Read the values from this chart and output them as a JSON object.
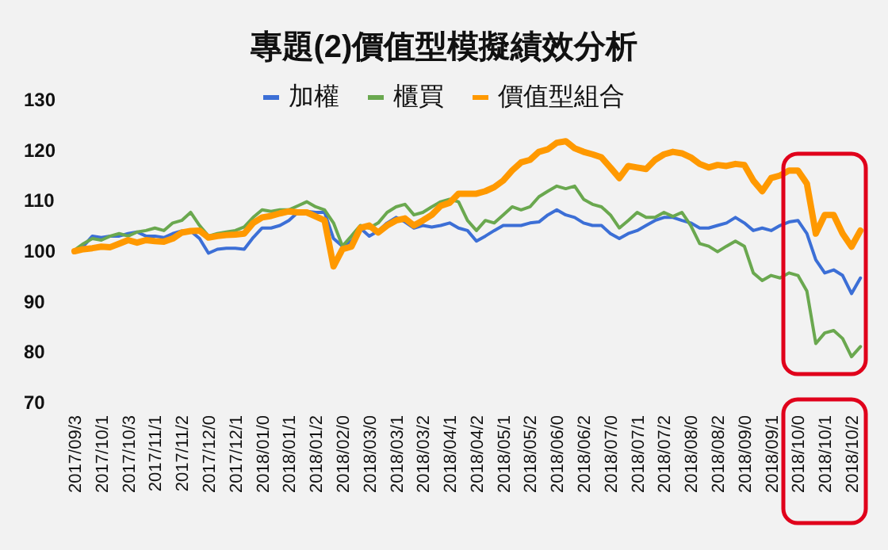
{
  "chart_data": {
    "type": "line",
    "title": "專題(2)價值型模擬績效分析",
    "categories": [
      "2017/09/3",
      null,
      null,
      "2017/10/1",
      null,
      null,
      "2017/10/3",
      null,
      null,
      "2017/11/1",
      null,
      null,
      "2017/11/2",
      null,
      null,
      "2017/12/0",
      null,
      null,
      "2017/12/1",
      null,
      null,
      "2018/01/0",
      null,
      null,
      "2018/01/1",
      null,
      null,
      "2018/01/2",
      null,
      null,
      "2018/02/0",
      null,
      null,
      "2018/03/0",
      null,
      null,
      "2018/03/1",
      null,
      null,
      "2018/03/2",
      null,
      null,
      "2018/04/1",
      null,
      null,
      "2018/04/2",
      null,
      null,
      "2018/05/1",
      null,
      null,
      "2018/05/2",
      null,
      null,
      "2018/06/0",
      null,
      null,
      "2018/06/2",
      null,
      null,
      "2018/07/0",
      null,
      null,
      "2018/07/1",
      null,
      null,
      "2018/07/2",
      null,
      null,
      "2018/08/0",
      null,
      null,
      "2018/08/2",
      null,
      null,
      "2018/09/0",
      null,
      null,
      "2018/09/1",
      null,
      null,
      "2018/10/0",
      null,
      null,
      "2018/10/1",
      null,
      null,
      "2018/10/2",
      null
    ],
    "series": [
      {
        "name": "加權",
        "color": "#3c6fd6",
        "values": [
          100,
          101,
          103,
          102.7,
          103,
          103,
          103.5,
          103.8,
          103,
          103,
          102.7,
          103.5,
          104,
          104,
          102.5,
          99.6,
          100.4,
          100.6,
          100.6,
          100.4,
          102.7,
          104.6,
          104.6,
          105.1,
          106.1,
          107.7,
          107.9,
          107.7,
          107.7,
          102.5,
          101,
          102,
          104.6,
          103,
          104,
          105.6,
          106.7,
          105.8,
          104.6,
          105.1,
          104.8,
          105.1,
          105.6,
          104.6,
          104.1,
          102,
          103,
          104.1,
          105.1,
          105.1,
          105.1,
          105.6,
          105.8,
          107.2,
          108.2,
          107.2,
          106.7,
          105.6,
          105.1,
          105.1,
          103.5,
          102.5,
          103.5,
          104.1,
          105.1,
          106.1,
          106.7,
          106.7,
          106.1,
          105.6,
          104.6,
          104.6,
          105.1,
          105.6,
          106.7,
          105.6,
          104.1,
          104.6,
          104.1,
          105.1,
          105.8,
          106.1,
          103.5,
          98.3,
          95.7,
          96.3,
          95.2,
          91.6,
          94.7
        ]
      },
      {
        "name": "櫃買",
        "color": "#6aa84f",
        "values": [
          100.2,
          101.5,
          102.5,
          102.2,
          103,
          103.5,
          103,
          103.8,
          104.1,
          104.6,
          104.1,
          105.6,
          106.1,
          107.7,
          105.1,
          103,
          103.5,
          103.8,
          104.1,
          104.8,
          106.7,
          108.2,
          107.9,
          108.2,
          108.2,
          109,
          109.8,
          108.8,
          108.2,
          105.6,
          101,
          103,
          105.1,
          104.6,
          105.6,
          107.7,
          108.8,
          109.3,
          107.2,
          107.7,
          108.8,
          109.8,
          110.3,
          109.8,
          106.1,
          104.1,
          106.1,
          105.6,
          107.2,
          108.8,
          108.2,
          108.8,
          110.8,
          111.9,
          112.9,
          112.4,
          112.9,
          110.3,
          109.3,
          108.8,
          107.2,
          104.6,
          106.1,
          107.7,
          106.7,
          106.7,
          107.7,
          106.9,
          107.7,
          105.1,
          101.5,
          101,
          99.9,
          101,
          102,
          101,
          95.7,
          94.2,
          95.2,
          94.7,
          95.7,
          95.2,
          92.1,
          81.7,
          83.8,
          84.3,
          82.7,
          79.1,
          81.1
        ]
      },
      {
        "name": "價值型組合",
        "color": "#ff9900",
        "values": [
          100,
          100.4,
          100.6,
          100.9,
          100.8,
          101.5,
          102.2,
          101.7,
          102.2,
          102,
          101.9,
          102.5,
          103.7,
          104,
          104.1,
          102.7,
          103,
          103.2,
          103.3,
          103.5,
          105.6,
          106.7,
          107,
          107.5,
          107.9,
          107.7,
          107.7,
          106.9,
          106.1,
          97,
          100.4,
          100.9,
          104.6,
          105.1,
          103.7,
          105.1,
          106.1,
          106.5,
          105.1,
          106.1,
          107.2,
          109,
          109.6,
          111.4,
          111.4,
          111.4,
          111.9,
          112.7,
          114,
          116,
          117.6,
          118.1,
          119.7,
          120.2,
          121.5,
          121.8,
          120.4,
          119.7,
          119.2,
          118.6,
          116.6,
          114.5,
          116.9,
          116.6,
          116.3,
          118.1,
          119.2,
          119.7,
          119.4,
          118.6,
          117.3,
          116.6,
          117.1,
          116.9,
          117.3,
          117.1,
          114,
          111.9,
          114.5,
          115,
          116,
          116,
          113.4,
          103.5,
          107.2,
          107.2,
          103.5,
          100.9,
          104.1
        ]
      }
    ],
    "ylim": [
      70,
      130
    ],
    "yticks": [
      70,
      80,
      90,
      100,
      110,
      120,
      130
    ],
    "legend": "top",
    "grid": false
  }
}
